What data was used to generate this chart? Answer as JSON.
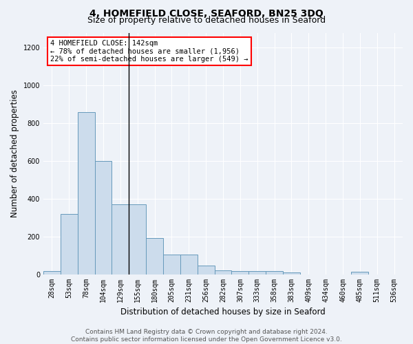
{
  "title": "4, HOMEFIELD CLOSE, SEAFORD, BN25 3DQ",
  "subtitle": "Size of property relative to detached houses in Seaford",
  "xlabel": "Distribution of detached houses by size in Seaford",
  "ylabel": "Number of detached properties",
  "categories": [
    "28sqm",
    "53sqm",
    "78sqm",
    "104sqm",
    "129sqm",
    "155sqm",
    "180sqm",
    "205sqm",
    "231sqm",
    "256sqm",
    "282sqm",
    "307sqm",
    "333sqm",
    "358sqm",
    "383sqm",
    "409sqm",
    "434sqm",
    "460sqm",
    "485sqm",
    "511sqm",
    "536sqm"
  ],
  "values": [
    15,
    320,
    860,
    600,
    370,
    370,
    190,
    105,
    105,
    45,
    20,
    18,
    18,
    18,
    10,
    0,
    0,
    0,
    13,
    0,
    0
  ],
  "bar_color": "#ccdcec",
  "bar_edge_color": "#6699bb",
  "bg_color": "#eef2f8",
  "vline_color": "black",
  "annotation_text": "4 HOMEFIELD CLOSE: 142sqm\n← 78% of detached houses are smaller (1,956)\n22% of semi-detached houses are larger (549) →",
  "annotation_box_color": "white",
  "annotation_box_edge": "red",
  "ylim": [
    0,
    1280
  ],
  "yticks": [
    0,
    200,
    400,
    600,
    800,
    1000,
    1200
  ],
  "footer": "Contains HM Land Registry data © Crown copyright and database right 2024.\nContains public sector information licensed under the Open Government Licence v3.0.",
  "title_fontsize": 10,
  "subtitle_fontsize": 9,
  "xlabel_fontsize": 8.5,
  "ylabel_fontsize": 8.5,
  "tick_fontsize": 7,
  "footer_fontsize": 6.5,
  "vline_pos": 4.5
}
